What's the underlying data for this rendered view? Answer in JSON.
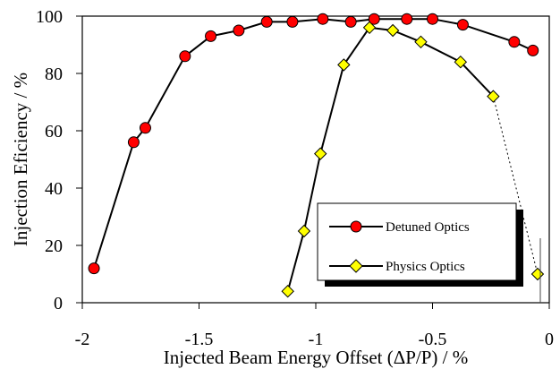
{
  "chart_data": {
    "type": "line",
    "title": "",
    "xlabel": "Injected Beam Energy Offset (ΔP/P) / %",
    "ylabel": "Injection Eficiency  / %",
    "xlim": [
      -2,
      0
    ],
    "ylim": [
      0,
      100
    ],
    "xticks": [
      -2,
      -1.5,
      -1,
      -0.5,
      0
    ],
    "xtick_labels": [
      "-2",
      "-1.5",
      "-1",
      "-0.5",
      "0"
    ],
    "yticks": [
      0,
      20,
      40,
      60,
      80,
      100
    ],
    "ytick_labels": [
      "0",
      "20",
      "40",
      "60",
      "80",
      "100"
    ],
    "grid": false,
    "legend_position": "bottom-right",
    "series": [
      {
        "name": "Detuned Optics",
        "marker": "circle",
        "color": "#ff0000",
        "x": [
          -1.95,
          -1.78,
          -1.73,
          -1.56,
          -1.45,
          -1.33,
          -1.21,
          -1.1,
          -0.97,
          -0.85,
          -0.75,
          -0.61,
          -0.5,
          -0.37,
          -0.15,
          -0.07
        ],
        "y": [
          12,
          56,
          61,
          86,
          93,
          95,
          98,
          98,
          99,
          98,
          99,
          99,
          99,
          97,
          91,
          88
        ]
      },
      {
        "name": "Physics Optics",
        "marker": "diamond",
        "color": "#ffff00",
        "x": [
          -1.12,
          -1.05,
          -0.98,
          -0.88,
          -0.77,
          -0.67,
          -0.55,
          -0.38,
          -0.24,
          -0.05
        ],
        "y": [
          4,
          25,
          52,
          83,
          96,
          95,
          91,
          84,
          72,
          10
        ]
      }
    ],
    "annotations": [
      "dotted segment from (-0.24, 72) to (-0.05, 10)"
    ]
  }
}
